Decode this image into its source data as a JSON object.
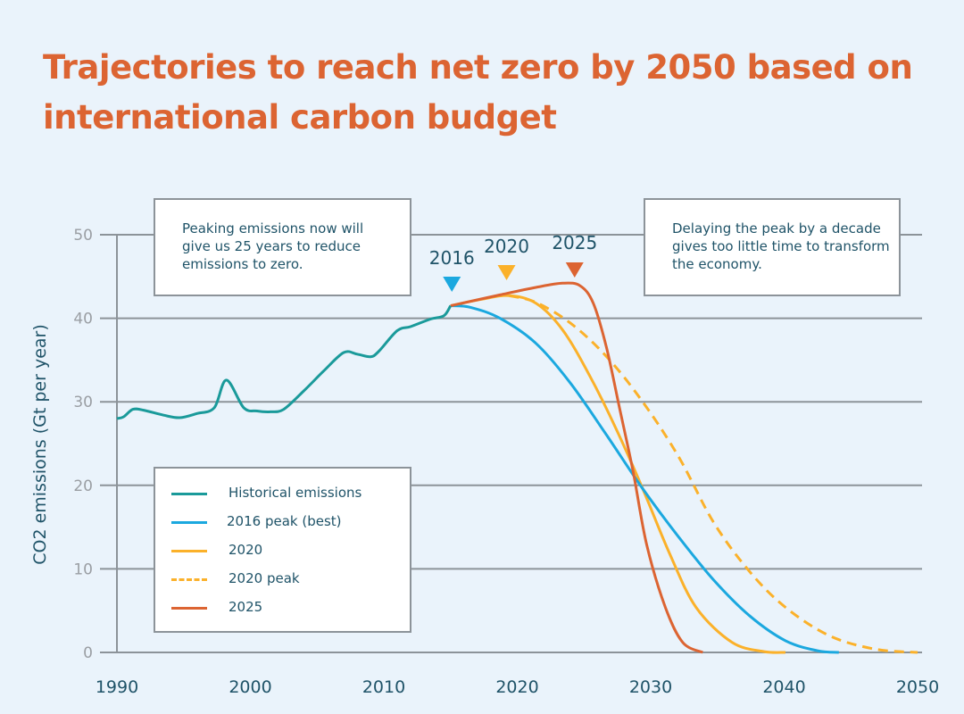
{
  "title": "Trajectories to reach net zero by 2050 based on international carbon budget",
  "annotations": {
    "left": "Peaking emissions now will give us 25 years to reduce emissions to zero.",
    "right": "Delaying the peak by a decade gives too little time to transform the economy."
  },
  "colors": {
    "background": "#EAF3FB",
    "title": "#DC6432",
    "historical": "#1A9A9A",
    "peak2016": "#1BA8DF",
    "y2020": "#FBB12A",
    "y2025": "#DC6432",
    "grid": "#8C9399",
    "text": "#1F5368"
  },
  "chart_data": {
    "type": "line",
    "title": "Trajectories to reach net zero by 2050 based on international carbon budget",
    "xlabel": "",
    "ylabel": "CO2 emissions (Gt per year)",
    "xlim": [
      1990,
      2050
    ],
    "ylim": [
      0,
      50
    ],
    "x_ticks": [
      1990,
      2000,
      2010,
      2020,
      2030,
      2040,
      2050
    ],
    "y_ticks": [
      0,
      10,
      20,
      30,
      40,
      50
    ],
    "grid": "horizontal",
    "legend_position": "bottom-left",
    "series": [
      {
        "name": "Historical emissions",
        "key": "historical",
        "style": "solid",
        "x": [
          1990,
          1990.5,
          1991.2,
          1992,
          1993.5,
          1994.7,
          1996,
          1997.3,
          1998.2,
          1999.5,
          2000.5,
          2001.5,
          2002.5,
          2004,
          2005.5,
          2007,
          2008,
          2009,
          2009.6,
          2011,
          2012,
          2013.5,
          2014.5,
          2015
        ],
        "y": [
          28.0,
          28.2,
          29.1,
          29.0,
          28.4,
          28.1,
          28.6,
          29.3,
          32.6,
          29.3,
          28.9,
          28.8,
          29.1,
          31.3,
          33.7,
          35.9,
          35.7,
          35.4,
          36.0,
          38.5,
          39.0,
          39.9,
          40.3,
          41.5
        ]
      },
      {
        "name": "2016 peak (best)",
        "key": "peak2016",
        "style": "solid",
        "x": [
          2015,
          2016.5,
          2018.7,
          2021.4,
          2024.0,
          2026.7,
          2029.4,
          2032.1,
          2034.7,
          2037.4,
          2040.1,
          2042.5,
          2044.1
        ],
        "y": [
          41.5,
          41.3,
          40.0,
          37.0,
          32.2,
          26.0,
          19.6,
          13.8,
          8.7,
          4.4,
          1.4,
          0.2,
          0
        ]
      },
      {
        "name": "2020",
        "key": "y2020",
        "style": "solid",
        "x": [
          2015,
          2017.4,
          2019.4,
          2021.4,
          2023.4,
          2025.4,
          2027.4,
          2029.4,
          2031.4,
          2033.4,
          2036.1,
          2038.5,
          2040.1
        ],
        "y": [
          41.5,
          42.3,
          42.7,
          41.8,
          38.6,
          33.2,
          26.8,
          19.6,
          11.9,
          5.4,
          1.2,
          0.1,
          0
        ]
      },
      {
        "name": "2020 peak",
        "key": "y2020",
        "style": "dashed",
        "x": [
          2019.4,
          2021.4,
          2024.0,
          2026.7,
          2029.4,
          2032.1,
          2034.7,
          2037.4,
          2040.1,
          2043.4,
          2046.8,
          2050
        ],
        "y": [
          42.7,
          41.9,
          39.4,
          35.4,
          30.0,
          23.4,
          15.6,
          9.7,
          5.4,
          2.0,
          0.4,
          0
        ]
      },
      {
        "name": "2025",
        "key": "y2025",
        "style": "solid",
        "x": [
          2015,
          2018.7,
          2021.4,
          2023.4,
          2024.7,
          2025.7,
          2026.7,
          2027.7,
          2028.7,
          2029.7,
          2031.1,
          2032.4,
          2033.9
        ],
        "y": [
          41.5,
          42.8,
          43.7,
          44.2,
          43.9,
          41.8,
          36.4,
          29.0,
          21.5,
          12.9,
          5.4,
          1.2,
          0
        ]
      }
    ],
    "peak_markers": [
      {
        "label": "2016",
        "x": 2015.1,
        "key": "peak2016"
      },
      {
        "label": "2020",
        "x": 2019.2,
        "key": "y2020"
      },
      {
        "label": "2025",
        "x": 2024.3,
        "key": "y2025"
      }
    ]
  },
  "legend": [
    {
      "label": "Historical emissions",
      "key": "historical",
      "style": "solid"
    },
    {
      "label": "2016 peak (best)",
      "key": "peak2016",
      "style": "solid"
    },
    {
      "label": "2020",
      "key": "y2020",
      "style": "solid"
    },
    {
      "label": "2020 peak",
      "key": "y2020",
      "style": "dashed"
    },
    {
      "label": "2025",
      "key": "y2025",
      "style": "solid"
    }
  ]
}
